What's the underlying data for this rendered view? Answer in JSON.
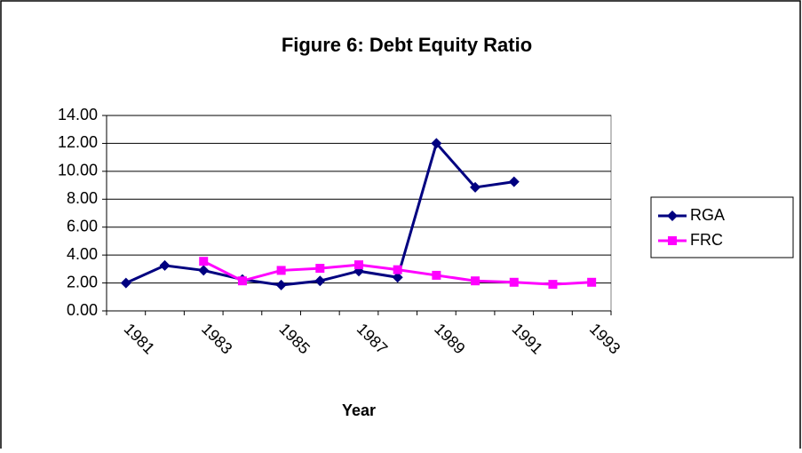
{
  "chart_data": {
    "type": "line",
    "title": "Figure 6: Debt Equity Ratio",
    "x_label": "Year",
    "categories": [
      "1981",
      null,
      "1983",
      null,
      "1985",
      null,
      "1987",
      null,
      "1989",
      null,
      "1991",
      null,
      "1993"
    ],
    "series": [
      {
        "name": "RGA",
        "color": "#000080",
        "marker": "diamond",
        "values": [
          2.0,
          3.25,
          2.9,
          2.25,
          1.85,
          2.15,
          2.85,
          2.4,
          12.0,
          8.85,
          9.25,
          null,
          null
        ]
      },
      {
        "name": "FRC",
        "color": "#ff00ff",
        "marker": "square",
        "values": [
          null,
          null,
          3.55,
          2.15,
          2.9,
          3.05,
          3.3,
          2.95,
          2.55,
          2.15,
          2.05,
          1.9,
          2.05
        ]
      }
    ],
    "ylim": [
      0,
      14
    ],
    "yticks": [
      {
        "value": 0,
        "label": "0.00"
      },
      {
        "value": 2,
        "label": "2.00"
      },
      {
        "value": 4,
        "label": "4.00"
      },
      {
        "value": 6,
        "label": "6.00"
      },
      {
        "value": 8,
        "label": "8.00"
      },
      {
        "value": 10,
        "label": "10.00"
      },
      {
        "value": 12,
        "label": "12.00"
      },
      {
        "value": 14,
        "label": "14.00"
      }
    ],
    "grid": true,
    "legend": "right"
  }
}
